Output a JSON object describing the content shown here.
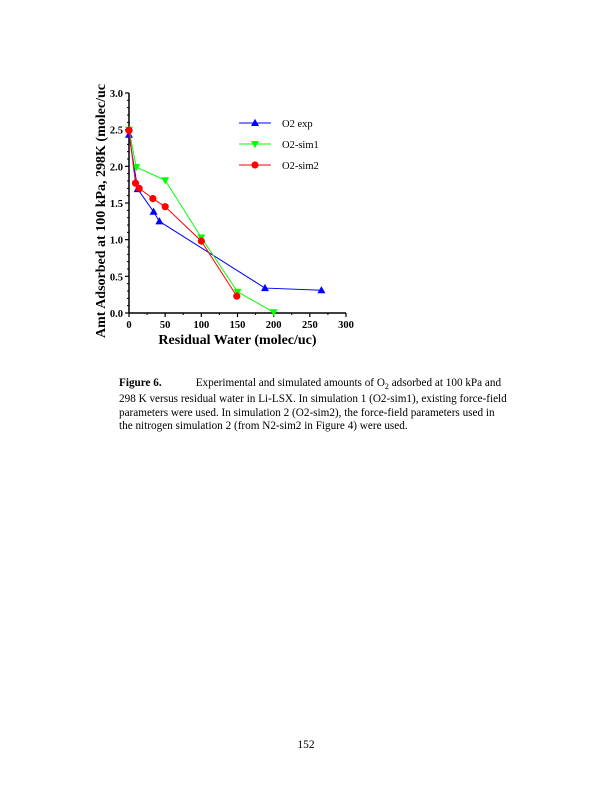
{
  "chart_data": {
    "type": "line",
    "title": "",
    "xlabel": "Residual Water (molec/uc)",
    "ylabel": "Amt Adsorbed at 100 kPa, 298K (molec/uc",
    "xlim": [
      0,
      300
    ],
    "ylim": [
      0,
      3.0
    ],
    "xticks": [
      "0",
      "50",
      "100",
      "150",
      "200",
      "250",
      "300"
    ],
    "yticks": [
      "0.0",
      "0.5",
      "1.0",
      "1.5",
      "2.0",
      "2.5",
      "3.0"
    ],
    "grid": false,
    "legend_position": "top-right",
    "series": [
      {
        "name": "O2 exp",
        "color": "#0000ff",
        "marker": "triangle-up",
        "x": [
          0,
          12,
          34,
          42,
          188,
          266
        ],
        "y": [
          2.43,
          1.69,
          1.38,
          1.25,
          0.34,
          0.31
        ]
      },
      {
        "name": "O2-sim1",
        "color": "#00ff00",
        "marker": "triangle-down",
        "x": [
          0,
          10,
          50,
          100,
          150,
          200
        ],
        "y": [
          2.5,
          1.99,
          1.81,
          1.03,
          0.29,
          0.01
        ]
      },
      {
        "name": "O2-sim2",
        "color": "#ff0000",
        "marker": "circle",
        "x": [
          0,
          9,
          14,
          33,
          50,
          100,
          149
        ],
        "y": [
          2.49,
          1.77,
          1.7,
          1.56,
          1.45,
          0.98,
          0.23
        ]
      }
    ]
  },
  "caption": {
    "label": "Figure 6.",
    "text_before_sub": "Experimental and simulated amounts of O",
    "sub": "2",
    "text_after_sub": " adsorbed at 100 kPa and 298 K versus residual water in Li-LSX.  In simulation 1 (O2-sim1), existing force-field parameters were used.  In simulation 2 (O2-sim2), the force-field parameters used in the nitrogen simulation 2 (from N2-sim2 in Figure 4) were used."
  },
  "page_number": "152"
}
